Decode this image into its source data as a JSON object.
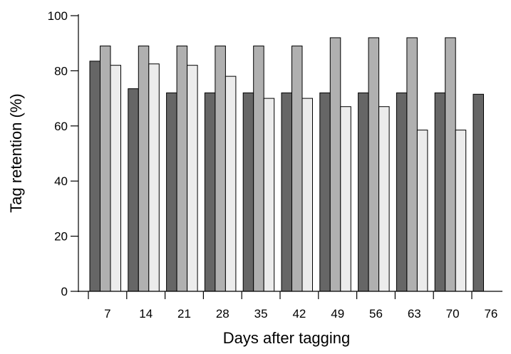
{
  "chart_data": {
    "type": "bar",
    "title": "",
    "xlabel": "Days after tagging",
    "ylabel": "Tag retention (%)",
    "categories": [
      "7",
      "14",
      "21",
      "28",
      "35",
      "42",
      "49",
      "56",
      "63",
      "70",
      "76"
    ],
    "ylim": [
      0,
      100
    ],
    "yticks": [
      "0",
      "20",
      "40",
      "60",
      "80",
      "100"
    ],
    "grid": false,
    "legend": false,
    "series": [
      {
        "color": "#666666",
        "values": [
          83.5,
          73.5,
          72,
          72,
          72,
          72,
          72,
          72,
          72,
          72,
          71.5
        ]
      },
      {
        "color": "#b0b0b0",
        "values": [
          89,
          89,
          89,
          89,
          89,
          89,
          92,
          92,
          92,
          92,
          null
        ]
      },
      {
        "color": "#ececec",
        "values": [
          82,
          82.5,
          82,
          78,
          70,
          70,
          67,
          67,
          58.5,
          58.5,
          null
        ]
      }
    ]
  }
}
